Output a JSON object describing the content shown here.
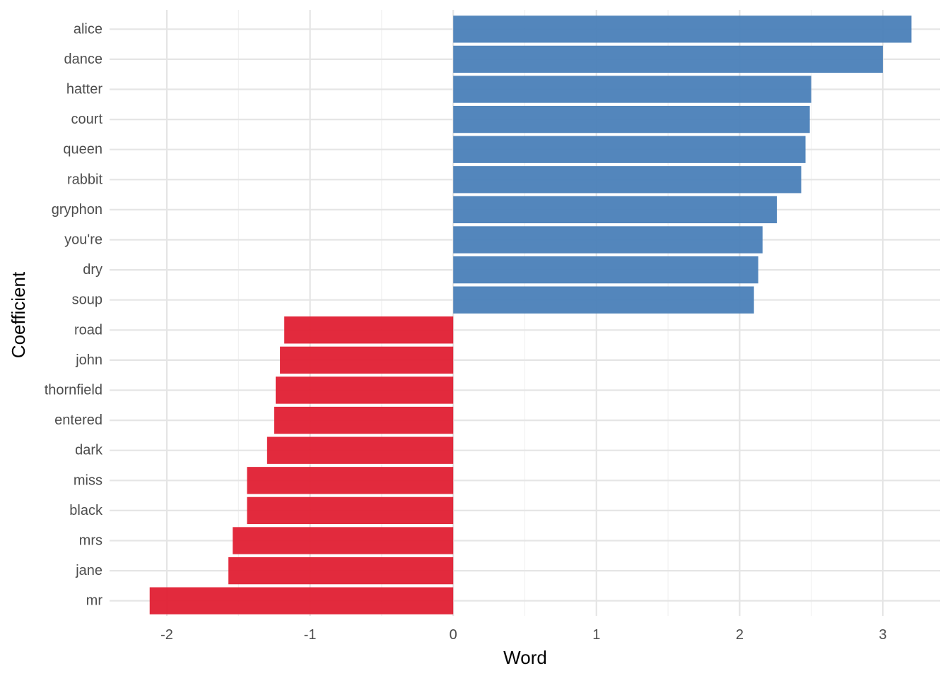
{
  "chart_data": {
    "type": "bar",
    "orientation": "horizontal",
    "xlabel": "Word",
    "ylabel": "Coefficient",
    "xlim": [
      -2.4,
      3.4
    ],
    "xticks": [
      -2,
      -1,
      0,
      1,
      2,
      3
    ],
    "xtick_labels": [
      "-2",
      "-1",
      "0",
      "1",
      "2",
      "3"
    ],
    "grid": true,
    "legend": "none",
    "categories": [
      "alice",
      "dance",
      "hatter",
      "court",
      "queen",
      "rabbit",
      "gryphon",
      "you're",
      "dry",
      "soup",
      "road",
      "john",
      "thornfield",
      "entered",
      "dark",
      "miss",
      "black",
      "mrs",
      "jane",
      "mr"
    ],
    "values": [
      3.2,
      3.0,
      2.5,
      2.49,
      2.46,
      2.43,
      2.26,
      2.16,
      2.13,
      2.1,
      -1.18,
      -1.21,
      -1.24,
      -1.25,
      -1.3,
      -1.44,
      -1.44,
      -1.54,
      -1.57,
      -2.12
    ],
    "colors": {
      "positive": "#4a7fb8",
      "negative": "#e01f33"
    }
  }
}
